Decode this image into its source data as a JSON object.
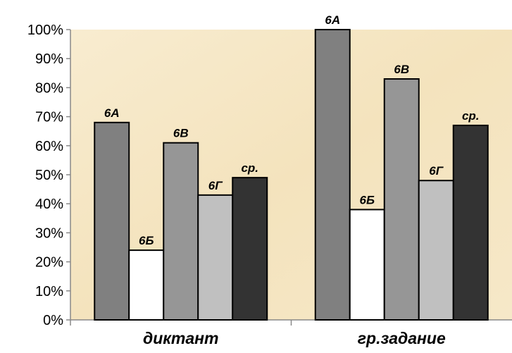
{
  "chart_data": {
    "type": "bar",
    "categories": [
      "диктант",
      "гр.задание"
    ],
    "series": [
      {
        "name": "6А",
        "color": "#808080",
        "values": [
          68,
          100
        ]
      },
      {
        "name": "6Б",
        "color": "#ffffff",
        "values": [
          24,
          38
        ]
      },
      {
        "name": "6В",
        "color": "#969696",
        "values": [
          61,
          83
        ]
      },
      {
        "name": "6Г",
        "color": "#c0c0c0",
        "values": [
          43,
          48
        ]
      },
      {
        "name": "ср.",
        "color": "#333333",
        "values": [
          49,
          67
        ]
      }
    ],
    "y_ticks": [
      "0%",
      "10%",
      "20%",
      "30%",
      "40%",
      "50%",
      "60%",
      "70%",
      "80%",
      "90%",
      "100%"
    ],
    "ylim": [
      0,
      100
    ],
    "title": "",
    "xlabel": "",
    "ylabel": "",
    "grid": false,
    "legend": "none",
    "data_labels": "series-name",
    "plot_background": "#f6e8c6"
  }
}
